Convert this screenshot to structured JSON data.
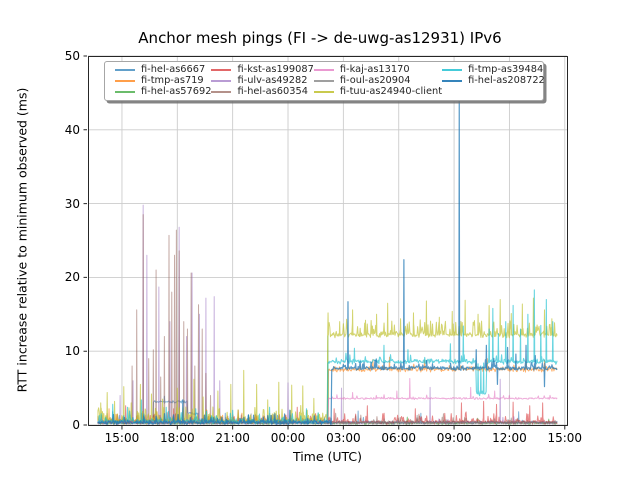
{
  "chart_data": {
    "type": "line",
    "title": "Anchor mesh pings (FI -> de-uwg-as12931) IPv6",
    "xlabel": "Time (UTC)",
    "ylabel": "RTT increase relative to minimum observed (ms)",
    "grid": true,
    "legend_position": "upper center inside axes, 4 columns, fancybox with shadow",
    "colors": {
      "background": "#ffffff",
      "grid": "#cccccc",
      "spine": "#262626",
      "tick_text": "#000000"
    },
    "x_axis": {
      "ticks_hours": [
        15,
        18,
        21,
        24,
        27,
        30,
        33,
        36,
        39
      ],
      "tick_labels": [
        "15:00",
        "18:00",
        "21:00",
        "00:00",
        "03:00",
        "06:00",
        "09:00",
        "12:00",
        "15:00"
      ],
      "xlim_hours": [
        13.16,
        39.12
      ]
    },
    "y_axis": {
      "ticks": [
        0,
        10,
        20,
        30,
        40,
        50
      ],
      "tick_labels": [
        "0",
        "10",
        "20",
        "30",
        "40",
        "50"
      ],
      "ylim": [
        0,
        50
      ]
    },
    "time_range_hours": [
      13.7,
      38.6
    ],
    "series": [
      {
        "name": "fi-hel-as6667",
        "color": "#1f77b4",
        "opacity": 0.55,
        "lw": 1,
        "noise": 0.22,
        "burst_p": 0.03,
        "burst_amp": 0.9,
        "base": [
          [
            13.7,
            0.35
          ],
          [
            16.68,
            3.15
          ],
          [
            18.55,
            1.6
          ],
          [
            19.15,
            0.35
          ]
        ],
        "spikes": [
          [
            14.5,
            1.8
          ],
          [
            17.3,
            3.9
          ],
          [
            20.6,
            1.6
          ],
          [
            23.2,
            1.4
          ],
          [
            27.8,
            1.9
          ],
          [
            31.2,
            1.6
          ],
          [
            36.5,
            1.8
          ]
        ]
      },
      {
        "name": "fi-tmp-as719",
        "color": "#ff7f0e",
        "opacity": 0.6,
        "lw": 1,
        "noise": 0.4,
        "burst_p": 0.06,
        "burst_amp": 0.8,
        "base": [
          [
            13.7,
            0.5
          ],
          [
            26.17,
            7.55
          ]
        ],
        "spikes": [
          [
            14.3,
            2.2
          ],
          [
            16.9,
            1.8
          ],
          [
            21.5,
            1.6
          ],
          [
            28.6,
            8.9
          ],
          [
            29.5,
            9.2
          ],
          [
            31.4,
            8.8
          ],
          [
            34.8,
            9.0
          ],
          [
            36.9,
            8.8
          ],
          [
            37.9,
            8.8
          ]
        ]
      },
      {
        "name": "fi-hel-as57692",
        "color": "#2ca02c",
        "opacity": 0.55,
        "lw": 1,
        "noise": 0.18,
        "burst_p": 0.015,
        "burst_amp": 0.7,
        "base": [
          [
            13.7,
            0.25
          ]
        ],
        "spikes": [
          [
            26.16,
            12.1
          ]
        ]
      },
      {
        "name": "fi-kst-as199087",
        "color": "#d62728",
        "opacity": 0.55,
        "lw": 1,
        "noise": 0.3,
        "burst_p": 0.22,
        "burst_amp": 1.2,
        "base": [
          [
            13.7,
            0.4
          ]
        ],
        "spikes": [
          [
            15.2,
            2.6
          ],
          [
            17.8,
            2.2
          ],
          [
            19.6,
            2.0
          ],
          [
            21.3,
            2.0
          ],
          [
            24.5,
            2.4
          ],
          [
            26.5,
            2.2
          ],
          [
            28.3,
            2.6
          ],
          [
            30.9,
            2.2
          ],
          [
            33.4,
            3.0
          ],
          [
            34.6,
            3.2
          ],
          [
            35.3,
            2.8
          ],
          [
            36.2,
            3.1
          ],
          [
            37.1,
            2.6
          ],
          [
            37.8,
            3.0
          ]
        ]
      },
      {
        "name": "fi-ulv-as49282",
        "color": "#9467bd",
        "opacity": 0.5,
        "lw": 1,
        "noise": 0.22,
        "burst_p": 0.02,
        "burst_amp": 0.9,
        "base": [
          [
            13.7,
            0.3
          ]
        ],
        "spikes": [
          [
            14.9,
            4.0
          ],
          [
            15.6,
            6.0
          ],
          [
            16.15,
            29.8
          ],
          [
            16.35,
            23.0
          ],
          [
            17.0,
            18.7
          ],
          [
            17.6,
            14.0
          ],
          [
            18.1,
            26.8
          ],
          [
            18.5,
            12.0
          ],
          [
            18.8,
            20.6
          ],
          [
            19.2,
            15.0
          ],
          [
            19.55,
            17.2
          ],
          [
            20.0,
            17.4
          ],
          [
            20.3,
            6.0
          ],
          [
            24.0,
            5.7
          ],
          [
            26.9,
            5.0
          ],
          [
            31.7,
            5.1
          ],
          [
            35.5,
            6.2
          ]
        ]
      },
      {
        "name": "fi-hel-as60354",
        "color": "#8c564b",
        "opacity": 0.5,
        "lw": 1,
        "noise": 0.28,
        "burst_p": 0.05,
        "burst_amp": 1.1,
        "base": [
          [
            13.7,
            0.35
          ]
        ],
        "spikes": [
          [
            15.55,
            8.0
          ],
          [
            15.8,
            15.6
          ],
          [
            16.15,
            28.5
          ],
          [
            16.45,
            9.0
          ],
          [
            16.7,
            10.2
          ],
          [
            16.85,
            21.0
          ],
          [
            17.1,
            6.5
          ],
          [
            17.3,
            12.0
          ],
          [
            17.55,
            25.7
          ],
          [
            17.7,
            18.0
          ],
          [
            17.85,
            23.0
          ],
          [
            17.95,
            26.4
          ],
          [
            18.1,
            23.6
          ],
          [
            18.35,
            14.0
          ],
          [
            18.55,
            13.0
          ],
          [
            18.75,
            20.6
          ],
          [
            18.95,
            8.0
          ],
          [
            19.15,
            16.3
          ],
          [
            19.35,
            13.0
          ],
          [
            19.55,
            7.0
          ],
          [
            19.8,
            4.0
          ]
        ]
      },
      {
        "name": "fi-kaj-as13170",
        "color": "#e377c2",
        "opacity": 0.6,
        "lw": 1,
        "noise": 0.15,
        "burst_p": 0.05,
        "burst_amp": 0.5,
        "base": [
          [
            13.7,
            0.4
          ],
          [
            26.17,
            3.6
          ]
        ],
        "spikes": [
          [
            27.5,
            4.4
          ],
          [
            29.9,
            4.6
          ],
          [
            30.6,
            6.3
          ],
          [
            33.9,
            5.1
          ],
          [
            35.2,
            4.6
          ]
        ]
      },
      {
        "name": "fi-oul-as20904",
        "color": "#7f7f7f",
        "opacity": 0.6,
        "lw": 1,
        "noise": 0.18,
        "burst_p": 0.03,
        "burst_amp": 0.6,
        "base": [
          [
            13.7,
            0.3
          ]
        ],
        "spikes": [
          [
            22.0,
            1.5
          ],
          [
            31.0,
            1.3
          ]
        ]
      },
      {
        "name": "fi-tuu-as24940-client",
        "color": "#bcbd22",
        "opacity": 0.65,
        "lw": 1,
        "noise": 0.45,
        "burst_p": 0.3,
        "burst_amp": 1.8,
        "base": [
          [
            13.7,
            0.6
          ],
          [
            26.13,
            12.2
          ]
        ],
        "spikes": [
          [
            13.85,
            3.0
          ],
          [
            14.2,
            4.4
          ],
          [
            14.6,
            3.2
          ],
          [
            15.1,
            5.2
          ],
          [
            15.5,
            3.0
          ],
          [
            16.0,
            5.5
          ],
          [
            16.6,
            4.2
          ],
          [
            17.2,
            3.5
          ],
          [
            18.0,
            5.0
          ],
          [
            18.9,
            6.2
          ],
          [
            19.4,
            3.8
          ],
          [
            20.2,
            4.6
          ],
          [
            20.9,
            5.5
          ],
          [
            21.6,
            7.4
          ],
          [
            22.3,
            5.5
          ],
          [
            22.9,
            3.4
          ],
          [
            23.5,
            5.8
          ],
          [
            24.2,
            5.4
          ],
          [
            24.8,
            5.3
          ],
          [
            25.4,
            3.6
          ],
          [
            26.17,
            15.2
          ],
          [
            26.8,
            14.0
          ],
          [
            27.5,
            15.6
          ],
          [
            28.2,
            14.2
          ],
          [
            28.8,
            15.0
          ],
          [
            29.4,
            16.5
          ],
          [
            30.1,
            14.4
          ],
          [
            30.8,
            15.2
          ],
          [
            31.5,
            16.8
          ],
          [
            32.2,
            14.6
          ],
          [
            32.9,
            15.4
          ],
          [
            33.6,
            16.9
          ],
          [
            34.3,
            15.0
          ],
          [
            34.9,
            16.2
          ],
          [
            35.5,
            17.0
          ],
          [
            36.1,
            15.1
          ],
          [
            36.7,
            16.4
          ],
          [
            37.3,
            17.2
          ],
          [
            37.9,
            15.6
          ],
          [
            38.3,
            14.4
          ]
        ]
      },
      {
        "name": "fi-tmp-as39484",
        "color": "#17becf",
        "opacity": 0.65,
        "lw": 1.1,
        "noise": 0.38,
        "burst_p": 0.12,
        "burst_amp": 1.3,
        "base": [
          [
            13.7,
            0.5
          ],
          [
            26.15,
            8.6
          ],
          [
            34.2,
            4.3
          ],
          [
            34.75,
            8.6
          ]
        ],
        "spikes": [
          [
            14.5,
            2.8
          ],
          [
            15.3,
            2.4
          ],
          [
            16.05,
            3.4
          ],
          [
            17.4,
            2.4
          ],
          [
            19.0,
            2.2
          ],
          [
            21.0,
            2.0
          ],
          [
            23.0,
            2.4
          ],
          [
            25.0,
            2.2
          ],
          [
            27.6,
            10.4
          ],
          [
            29.2,
            10.8
          ],
          [
            30.5,
            10.2
          ],
          [
            32.8,
            11.0
          ],
          [
            33.5,
            13.4
          ],
          [
            34.3,
            8.3
          ],
          [
            34.45,
            8.0
          ],
          [
            34.6,
            8.4
          ],
          [
            34.9,
            13.0
          ],
          [
            35.1,
            15.8
          ],
          [
            35.4,
            12.4
          ],
          [
            35.8,
            14.0
          ],
          [
            36.2,
            16.2
          ],
          [
            36.6,
            13.0
          ],
          [
            37.0,
            15.0
          ],
          [
            37.35,
            18.3
          ],
          [
            37.7,
            13.5
          ],
          [
            38.0,
            17.0
          ],
          [
            38.35,
            14.0
          ]
        ]
      },
      {
        "name": "fi-hel-as208722",
        "color": "#1f77b4",
        "opacity": 0.75,
        "lw": 1.2,
        "noise": 0.32,
        "burst_p": 0.09,
        "burst_amp": 1.1,
        "base": [
          [
            13.7,
            0.35
          ],
          [
            26.35,
            7.7
          ]
        ],
        "spikes": [
          [
            18.3,
            3.4
          ],
          [
            24.1,
            2.0
          ],
          [
            27.25,
            16.7
          ],
          [
            30.28,
            22.4
          ],
          [
            33.28,
            44.0
          ],
          [
            34.2,
            10.2
          ],
          [
            34.75,
            10.8
          ],
          [
            35.35,
            5.5
          ],
          [
            35.9,
            10.5
          ],
          [
            36.35,
            9.6
          ],
          [
            36.9,
            10.8
          ],
          [
            37.4,
            9.4
          ],
          [
            37.9,
            5.2
          ]
        ]
      }
    ]
  }
}
